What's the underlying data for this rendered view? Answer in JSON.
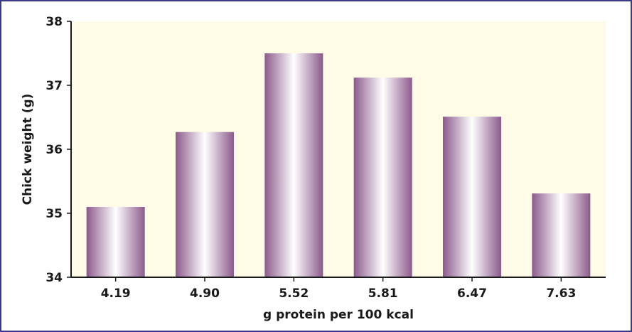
{
  "chart_data": {
    "type": "bar",
    "xlabel": "g protein per 100 kcal",
    "ylabel": "Chick weight (g)",
    "categories": [
      "4.19",
      "4.90",
      "5.52",
      "5.81",
      "6.47",
      "7.63"
    ],
    "values": [
      35.1,
      36.27,
      37.5,
      37.12,
      36.51,
      35.31
    ],
    "ylim": [
      34,
      38
    ],
    "yticks": [
      "34",
      "35",
      "36",
      "37",
      "38"
    ],
    "grid": false,
    "legend": "none",
    "colors": {
      "plot_background": "#fffbe6",
      "bar_dark": "#8b5a8c",
      "bar_light": "#ffffff",
      "axis": "#1a1a1a",
      "border": "#3b3b8a"
    }
  }
}
